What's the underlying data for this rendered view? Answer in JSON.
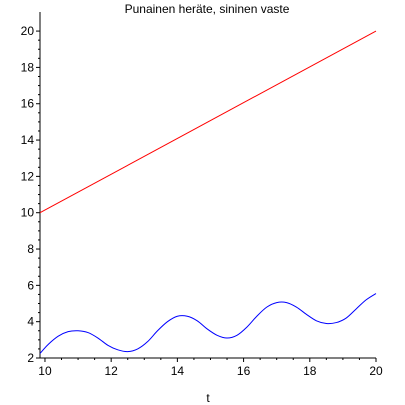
{
  "chart_data": {
    "type": "line",
    "title": "Punainen heräte, sininen vaste",
    "xlabel": "t",
    "ylabel": "",
    "xlim": [
      9.85,
      20
    ],
    "ylim": [
      2,
      20.5
    ],
    "grid": false,
    "x_ticks": [
      10,
      12,
      14,
      16,
      18,
      20
    ],
    "y_ticks": [
      2,
      4,
      6,
      8,
      10,
      12,
      14,
      16,
      18,
      20
    ],
    "series": [
      {
        "color": "#ff0000",
        "x": [
          9.85,
          20
        ],
        "y": [
          10.0,
          20.0
        ]
      },
      {
        "color": "#0000ff",
        "x": [
          9.85,
          10.1,
          10.4,
          10.7,
          11.0,
          11.3,
          11.6,
          11.9,
          12.2,
          12.5,
          12.8,
          13.1,
          13.4,
          13.7,
          14.0,
          14.3,
          14.6,
          14.9,
          15.2,
          15.5,
          15.8,
          16.1,
          16.4,
          16.7,
          17.0,
          17.3,
          17.6,
          17.9,
          18.2,
          18.5,
          18.8,
          19.1,
          19.4,
          19.7,
          20.0
        ],
        "y": [
          2.25,
          2.75,
          3.2,
          3.45,
          3.5,
          3.4,
          3.1,
          2.7,
          2.45,
          2.35,
          2.5,
          2.9,
          3.5,
          4.0,
          4.3,
          4.3,
          4.05,
          3.6,
          3.25,
          3.1,
          3.25,
          3.7,
          4.3,
          4.8,
          5.05,
          5.05,
          4.8,
          4.4,
          4.05,
          3.9,
          3.95,
          4.2,
          4.7,
          5.2,
          5.55
        ]
      }
    ]
  }
}
